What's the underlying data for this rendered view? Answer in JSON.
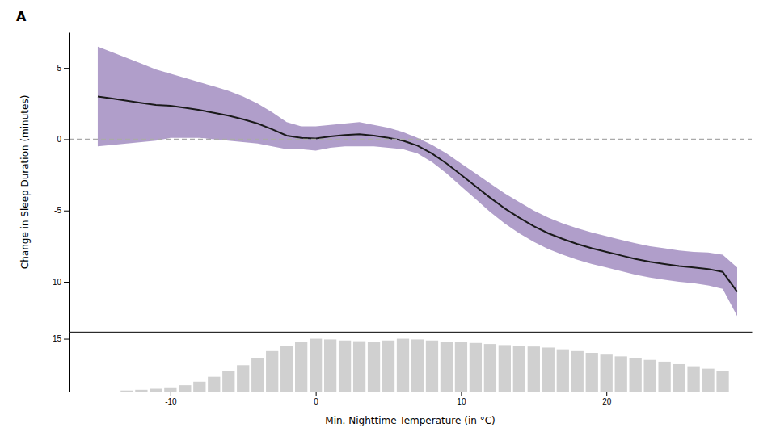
{
  "chart_data": [
    {
      "type": "line",
      "title": "A",
      "ylabel": "Change in Sleep Duration (minutes)",
      "x": [
        -15,
        -14,
        -13,
        -12,
        -11,
        -10,
        -9,
        -8,
        -7,
        -6,
        -5,
        -4,
        -3,
        -2,
        -1,
        0,
        1,
        2,
        3,
        4,
        5,
        6,
        7,
        8,
        9,
        10,
        11,
        12,
        13,
        14,
        15,
        16,
        17,
        18,
        19,
        20,
        21,
        22,
        23,
        24,
        25,
        26,
        27,
        28,
        29
      ],
      "series": [
        {
          "type": "area",
          "color": "#7b5ea7",
          "lower": [
            -0.5,
            -0.4,
            -0.3,
            -0.2,
            -0.1,
            0.1,
            0.1,
            0.1,
            0.0,
            -0.1,
            -0.2,
            -0.3,
            -0.5,
            -0.7,
            -0.7,
            -0.8,
            -0.6,
            -0.5,
            -0.5,
            -0.5,
            -0.6,
            -0.7,
            -1.0,
            -1.6,
            -2.4,
            -3.3,
            -4.2,
            -5.1,
            -5.9,
            -6.6,
            -7.2,
            -7.7,
            -8.1,
            -8.45,
            -8.75,
            -9.0,
            -9.25,
            -9.5,
            -9.7,
            -9.85,
            -10.0,
            -10.1,
            -10.25,
            -10.5,
            -12.4
          ],
          "upper": [
            6.5,
            6.1,
            5.7,
            5.3,
            4.9,
            4.6,
            4.3,
            4.0,
            3.7,
            3.4,
            3.0,
            2.5,
            1.9,
            1.2,
            0.9,
            0.9,
            1.0,
            1.1,
            1.2,
            1.0,
            0.8,
            0.5,
            0.1,
            -0.4,
            -1.0,
            -1.7,
            -2.4,
            -3.1,
            -3.8,
            -4.4,
            -5.0,
            -5.5,
            -5.9,
            -6.25,
            -6.55,
            -6.8,
            -7.05,
            -7.3,
            -7.5,
            -7.65,
            -7.8,
            -7.9,
            -7.95,
            -8.1,
            -9.0
          ]
        },
        {
          "type": "line",
          "color": "#1a1a1a",
          "line_style": "solid",
          "values": [
            3.0,
            2.85,
            2.7,
            2.55,
            2.4,
            2.35,
            2.2,
            2.05,
            1.85,
            1.65,
            1.4,
            1.1,
            0.7,
            0.25,
            0.1,
            0.05,
            0.2,
            0.3,
            0.35,
            0.25,
            0.1,
            -0.1,
            -0.45,
            -1.0,
            -1.7,
            -2.5,
            -3.3,
            -4.1,
            -4.85,
            -5.5,
            -6.1,
            -6.6,
            -7.0,
            -7.35,
            -7.65,
            -7.9,
            -8.15,
            -8.4,
            -8.6,
            -8.75,
            -8.9,
            -9.0,
            -9.1,
            -9.3,
            -10.7
          ]
        }
      ],
      "hlines": [
        {
          "y": 0,
          "color": "#aaaaaa",
          "line_style": "dashed"
        }
      ],
      "xlim": [
        -17,
        30
      ],
      "ylim": [
        -13.5,
        7.5
      ],
      "yticks": [
        5,
        0,
        -5,
        -10
      ],
      "tick_labels": "y",
      "grid": false
    },
    {
      "type": "bar",
      "xlabel": "Min. Nighttime Temperature (in °C)",
      "x": [
        -13,
        -12,
        -11,
        -10,
        -9,
        -8,
        -7,
        -6,
        -5,
        -4,
        -3,
        -2,
        -1,
        0,
        1,
        2,
        3,
        4,
        5,
        6,
        7,
        8,
        9,
        10,
        11,
        12,
        13,
        14,
        15,
        16,
        17,
        18,
        19,
        20,
        21,
        22,
        23,
        24,
        25,
        26,
        27,
        28
      ],
      "values": [
        0.3,
        0.5,
        0.8,
        1.2,
        1.8,
        2.8,
        4.2,
        5.8,
        7.5,
        9.5,
        11.5,
        13.0,
        14.2,
        15.0,
        14.8,
        14.5,
        14.3,
        14.0,
        14.5,
        15.0,
        14.8,
        14.5,
        14.2,
        14.0,
        13.8,
        13.5,
        13.2,
        13.0,
        12.8,
        12.5,
        12.0,
        11.5,
        11.0,
        10.5,
        10.0,
        9.5,
        9.0,
        8.5,
        7.8,
        7.2,
        6.5,
        5.8
      ],
      "color": "#d0d0d0",
      "xlim": [
        -17,
        30
      ],
      "xticks": [
        -10,
        0,
        10,
        20
      ],
      "ylim": [
        0,
        17
      ],
      "yticks": [
        15
      ],
      "grid": false
    }
  ]
}
